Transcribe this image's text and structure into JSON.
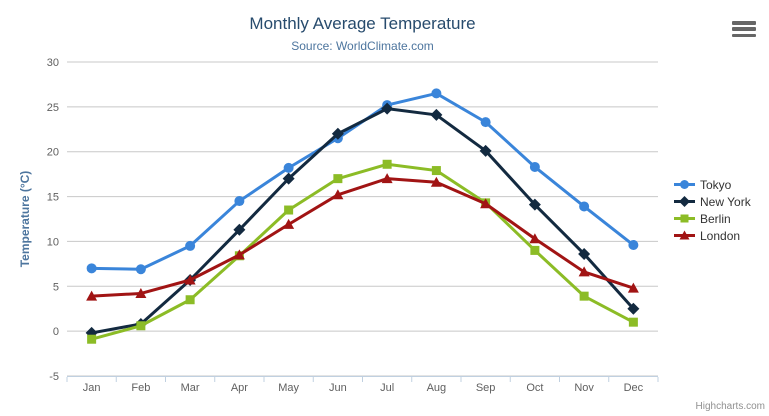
{
  "chart": {
    "title": "Monthly Average Temperature",
    "subtitle": "Source: WorldClimate.com",
    "credits": "Highcharts.com",
    "export_menu_icon": "hamburger-icon",
    "colors": {
      "title": "#274b6d",
      "subtitle": "#4d759e",
      "axis_labels": "#606060",
      "axis_title": "#4d759e",
      "grid": "#c8c8c8",
      "axis_line": "#c0d0e0",
      "legend_text": "#333333",
      "credits_text": "#909090"
    }
  },
  "chart_data": {
    "type": "line",
    "title": "Monthly Average Temperature",
    "subtitle": "Source: WorldClimate.com",
    "categories": [
      "Jan",
      "Feb",
      "Mar",
      "Apr",
      "May",
      "Jun",
      "Jul",
      "Aug",
      "Sep",
      "Oct",
      "Nov",
      "Dec"
    ],
    "series": [
      {
        "name": "Tokyo",
        "color": "#3a85da",
        "marker": "circle",
        "values": [
          7.0,
          6.9,
          9.5,
          14.5,
          18.2,
          21.5,
          25.2,
          26.5,
          23.3,
          18.3,
          13.9,
          9.6
        ]
      },
      {
        "name": "New York",
        "color": "#132a40",
        "marker": "diamond",
        "values": [
          -0.2,
          0.8,
          5.7,
          11.3,
          17.0,
          22.0,
          24.8,
          24.1,
          20.1,
          14.1,
          8.6,
          2.5
        ]
      },
      {
        "name": "Berlin",
        "color": "#8cbc26",
        "marker": "square",
        "values": [
          -0.9,
          0.6,
          3.5,
          8.4,
          13.5,
          17.0,
          18.6,
          17.9,
          14.3,
          9.0,
          3.9,
          1.0
        ]
      },
      {
        "name": "London",
        "color": "#a11414",
        "marker": "triangle",
        "values": [
          3.9,
          4.2,
          5.7,
          8.5,
          11.9,
          15.2,
          17.0,
          16.6,
          14.2,
          10.3,
          6.6,
          4.8
        ]
      }
    ],
    "xlabel": "",
    "ylabel": "Temperature (°C)",
    "ylim": [
      -5,
      30
    ],
    "y_ticks": [
      -5,
      0,
      5,
      10,
      15,
      20,
      25,
      30
    ],
    "grid": true,
    "legend_position": "right"
  }
}
